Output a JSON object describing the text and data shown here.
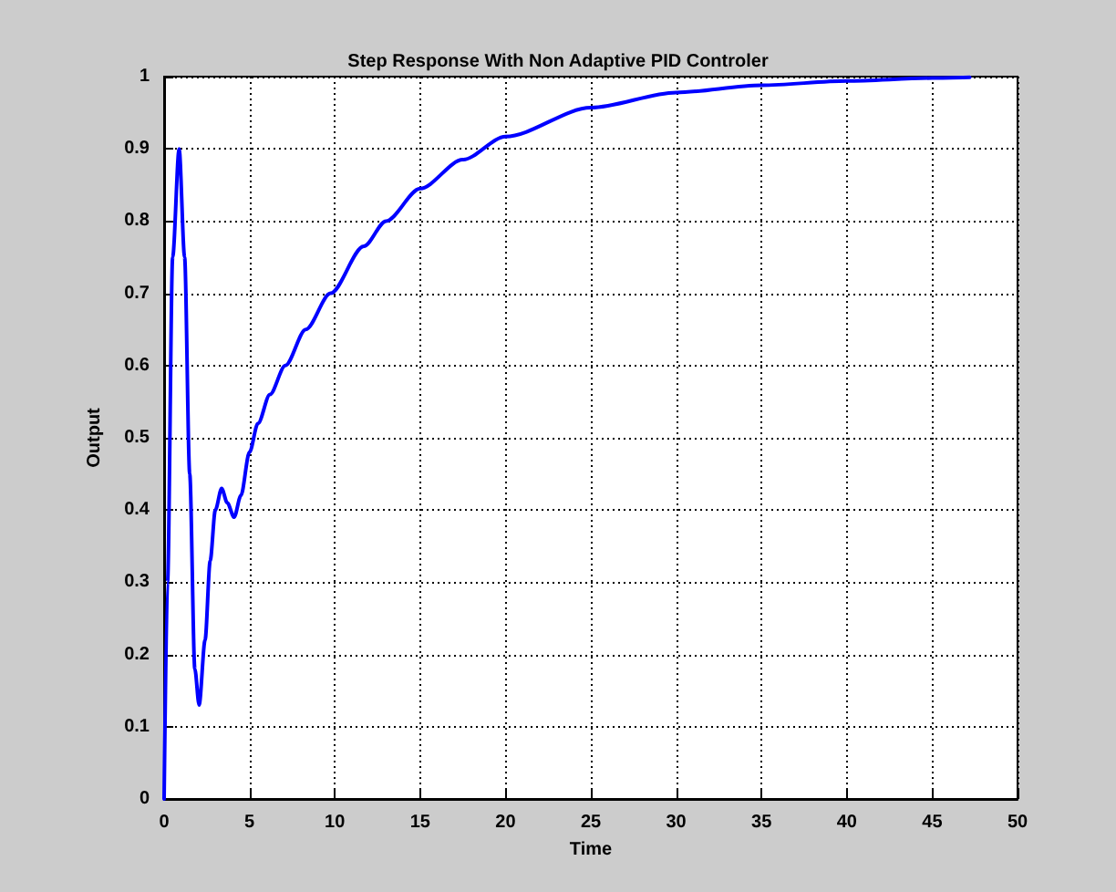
{
  "chart_data": {
    "type": "line",
    "title": "Step Response With Non Adaptive PID Controler",
    "xlabel": "Time",
    "ylabel": "Output",
    "x": [
      0,
      0.2,
      0.5,
      0.88,
      1.2,
      1.5,
      1.8,
      2.05,
      2.4,
      2.7,
      3.0,
      3.37,
      3.7,
      4.1,
      4.5,
      5.0,
      5.5,
      6.2,
      7.1,
      8.3,
      9.75,
      11.7,
      13,
      15,
      17.5,
      20,
      25,
      30,
      35,
      40,
      45,
      47.2
    ],
    "series": [
      {
        "color": "#0000ff",
        "values": [
          0,
          0.3,
          0.75,
          0.9,
          0.75,
          0.45,
          0.18,
          0.13,
          0.22,
          0.33,
          0.4,
          0.43,
          0.41,
          0.39,
          0.42,
          0.48,
          0.52,
          0.56,
          0.6,
          0.65,
          0.7,
          0.765,
          0.8,
          0.845,
          0.885,
          0.917,
          0.957,
          0.978,
          0.988,
          0.994,
          0.998,
          0.999
        ]
      }
    ],
    "xlim": [
      0,
      50
    ],
    "xticks": [
      0,
      5,
      10,
      15,
      20,
      25,
      30,
      35,
      40,
      45,
      50
    ],
    "ylim": [
      0,
      1
    ],
    "yticks": [
      0,
      0.1,
      0.2,
      0.3,
      0.4,
      0.5,
      0.6,
      0.7,
      0.8,
      0.9,
      1
    ],
    "grid": true,
    "marker": "none",
    "line_style": "solid"
  }
}
